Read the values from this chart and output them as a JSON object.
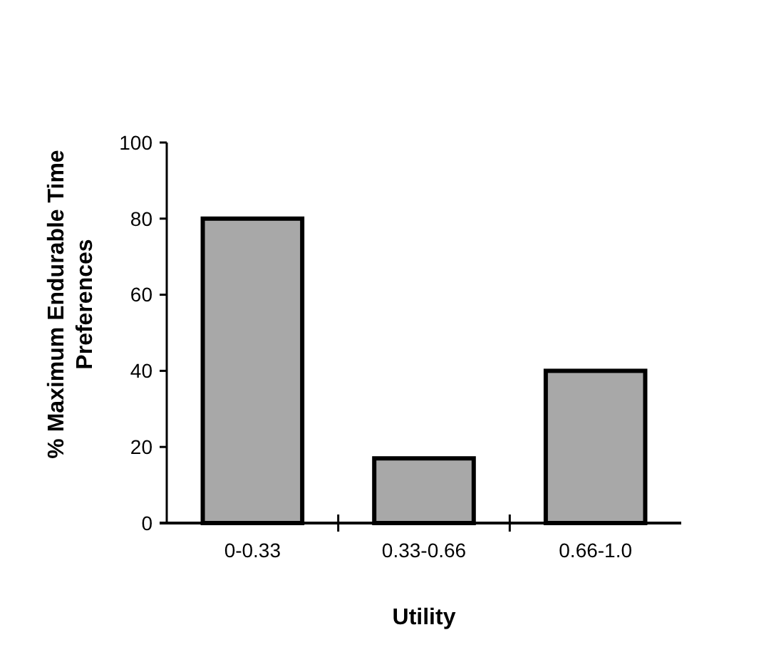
{
  "chart_data": {
    "type": "bar",
    "xlabel": "Utility",
    "ylabel": "% Maximum Endurable Time Preferences",
    "categories": [
      "0-0.33",
      "0.33-0.66",
      "0.66-1.0"
    ],
    "values": [
      80,
      17,
      40
    ],
    "color": "#a8a8a8",
    "ylim": [
      0,
      100
    ],
    "yticks": [
      0,
      20,
      40,
      60,
      80,
      100
    ],
    "grid": false
  }
}
